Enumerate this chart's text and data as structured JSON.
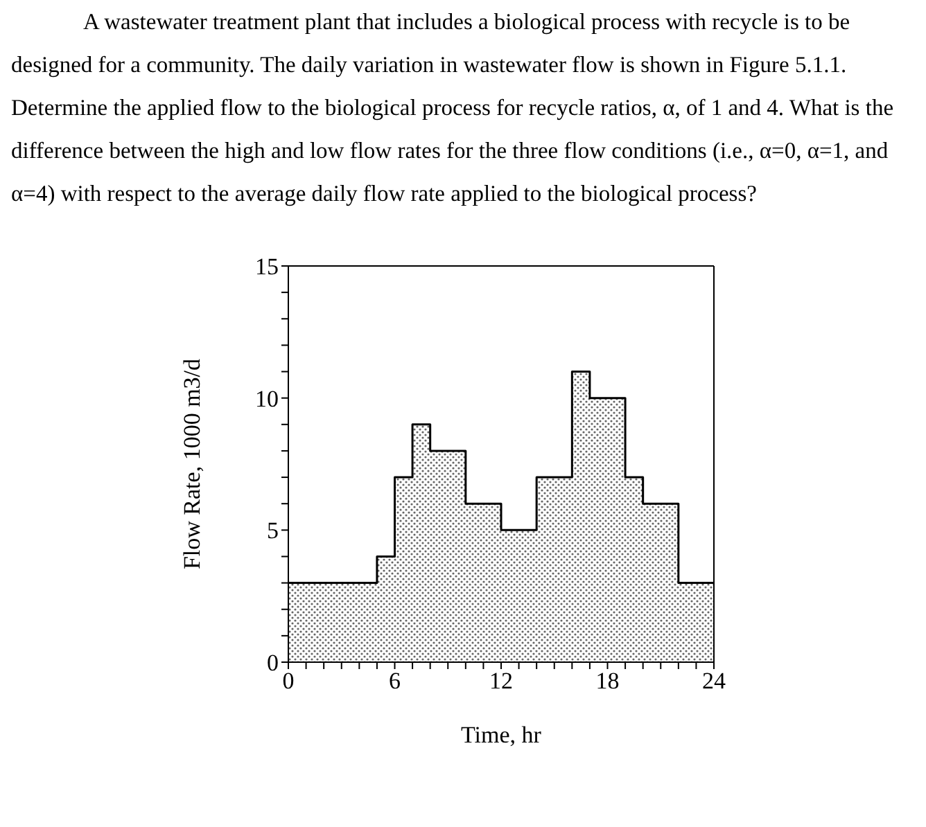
{
  "chart_data": {
    "type": "area",
    "annotations": [
      "A wastewater treatment plant that includes a biological process with recycle is to be designed for a community. The daily variation in wastewater flow is shown in Figure 5.1.1. Determine the applied flow to the biological process for recycle ratios, α, of 1 and 4. What is the difference between the high and low flow rates for the three flow conditions (i.e., α=0, α=1, and α=4) with respect to the average daily flow rate applied to the biological process?"
    ],
    "xlabel": "Time, hr",
    "ylabel": "Flow Rate, 1000 m3/d",
    "x": [
      0,
      5,
      5,
      6,
      6,
      7,
      7,
      8,
      8,
      10,
      10,
      12,
      12,
      14,
      14,
      16,
      16,
      17,
      17,
      19,
      19,
      20,
      20,
      22,
      22,
      24
    ],
    "series": [
      {
        "color": "#000000",
        "values": [
          3,
          3,
          4,
          4,
          7,
          7,
          9,
          9,
          8,
          8,
          6,
          6,
          5,
          5,
          7,
          7,
          11,
          11,
          10,
          10,
          7,
          7,
          6,
          6,
          3,
          3
        ]
      }
    ],
    "xlim": [
      0,
      24
    ],
    "xticks": [
      0,
      {
        "value": 1,
        "label": null
      },
      {
        "value": 2,
        "label": null
      },
      {
        "value": 3,
        "label": null
      },
      {
        "value": 4,
        "label": null
      },
      {
        "value": 5,
        "label": null
      },
      6,
      {
        "value": 7,
        "label": null
      },
      {
        "value": 8,
        "label": null
      },
      {
        "value": 9,
        "label": null
      },
      {
        "value": 10,
        "label": null
      },
      {
        "value": 11,
        "label": null
      },
      12,
      {
        "value": 13,
        "label": null
      },
      {
        "value": 14,
        "label": null
      },
      {
        "value": 15,
        "label": null
      },
      {
        "value": 16,
        "label": null
      },
      {
        "value": 17,
        "label": null
      },
      18,
      {
        "value": 19,
        "label": null
      },
      {
        "value": 20,
        "label": null
      },
      {
        "value": 21,
        "label": null
      },
      {
        "value": 22,
        "label": null
      },
      {
        "value": 23,
        "label": null
      },
      24
    ],
    "ylim": [
      0,
      15
    ],
    "yticks": [
      0,
      {
        "value": 1,
        "label": null
      },
      {
        "value": 2,
        "label": null
      },
      {
        "value": 3,
        "label": null
      },
      {
        "value": 4,
        "label": null
      },
      5,
      {
        "value": 6,
        "label": null
      },
      {
        "value": 7,
        "label": null
      },
      {
        "value": 8,
        "label": null
      },
      {
        "value": 9,
        "label": null
      },
      10,
      {
        "value": 11,
        "label": null
      },
      {
        "value": 12,
        "label": null
      },
      {
        "value": 13,
        "label": null
      },
      {
        "value": 14,
        "label": null
      },
      15
    ],
    "grid": false,
    "marker": "none",
    "line_style": "solid"
  }
}
